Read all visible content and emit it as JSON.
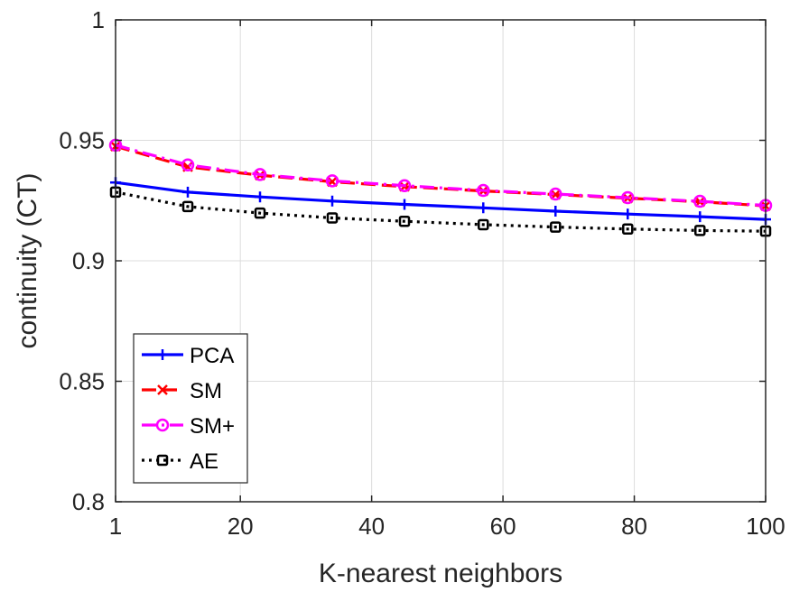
{
  "chart_data": {
    "type": "line",
    "title": "",
    "xlabel": "K-nearest neighbors",
    "ylabel": "continuity (CT)",
    "xlim": [
      1,
      100
    ],
    "ylim": [
      0.8,
      1.0
    ],
    "xticks": [
      1,
      20,
      40,
      60,
      80,
      100
    ],
    "yticks": [
      0.8,
      0.85,
      0.9,
      0.95,
      1
    ],
    "xtick_labels": [
      "1",
      "20",
      "40",
      "60",
      "80",
      "100"
    ],
    "ytick_labels": [
      "0.8",
      "0.85",
      "0.9",
      "0.95",
      "1"
    ],
    "grid": true,
    "legend_position": "bottom-left",
    "x": [
      1,
      12,
      23,
      34,
      45,
      57,
      68,
      79,
      90,
      100
    ],
    "series": [
      {
        "name": "PCA",
        "color": "#0000ff",
        "marker": "plus",
        "dash": "solid",
        "values": [
          0.9325,
          0.9285,
          0.9265,
          0.9248,
          0.9234,
          0.922,
          0.9206,
          0.9194,
          0.9183,
          0.9172
        ]
      },
      {
        "name": "SM",
        "color": "#ff0000",
        "marker": "cross",
        "dash": "dashed",
        "values": [
          0.9475,
          0.939,
          0.9355,
          0.9328,
          0.9308,
          0.929,
          0.9275,
          0.926,
          0.9245,
          0.9228
        ]
      },
      {
        "name": "SM+",
        "color": "#ff00ff",
        "marker": "circle",
        "dash": "dashdot",
        "values": [
          0.948,
          0.9398,
          0.9358,
          0.9332,
          0.9312,
          0.9292,
          0.9277,
          0.9262,
          0.9247,
          0.923
        ]
      },
      {
        "name": "AE",
        "color": "#000000",
        "marker": "square",
        "dash": "dotted",
        "values": [
          0.9285,
          0.9225,
          0.9198,
          0.9178,
          0.9164,
          0.915,
          0.914,
          0.9132,
          0.9126,
          0.9123
        ]
      }
    ]
  }
}
